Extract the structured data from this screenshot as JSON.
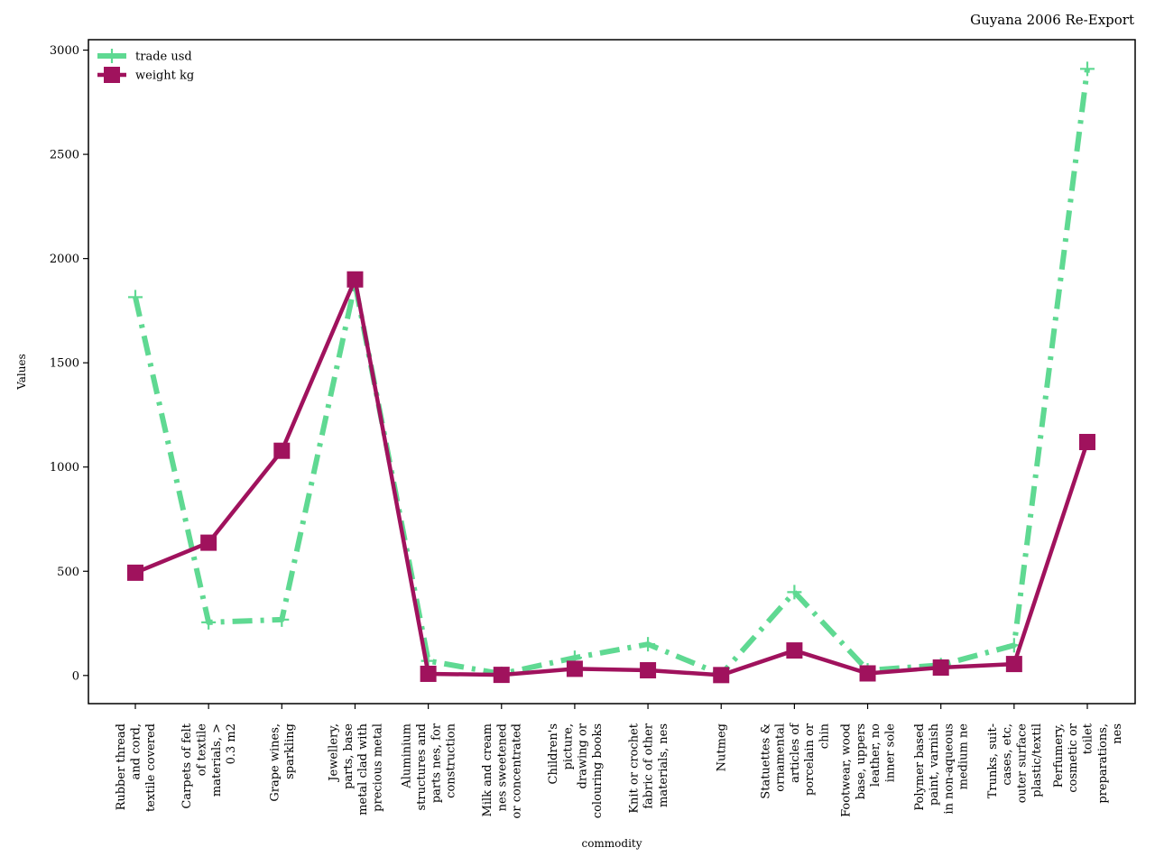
{
  "chart_data": {
    "type": "line",
    "title": "Guyana 2006 Re-Export",
    "xlabel": "commodity",
    "ylabel": "Values",
    "categories": [
      "Rubber thread\nand cord,\ntextile covered",
      "Carpets of felt\nof textile\nmaterials, >\n0.3 m2",
      "Grape wines,\nsparkling",
      "Jewellery,\nparts, base\nmetal clad with\nprecious metal",
      "Aluminium\nstructures and\nparts nes, for\nconstruction",
      "Milk and cream\nnes sweetened\nor concentrated",
      "Children's\npicture,\ndrawing or\ncolouring books",
      "Knit or crochet\nfabric of other\nmaterials, nes",
      "Nutmeg",
      "Statuettes &\nornamental\narticles of\nporcelain or\nchin",
      "Footwear, wood\nbase, uppers\nleather, no\ninner sole",
      "Polymer based\npaint, varnish\nin non-aqueous\nmedium ne",
      "Trunks, suit-\ncases, etc,\nouter surface\nplastic/textil",
      "Perfumery,\ncosmetic or\ntoilet\npreparations,\nnes"
    ],
    "series": [
      {
        "name": "trade usd",
        "color": "#5fd992",
        "values": [
          1815,
          255,
          268,
          1880,
          70,
          8,
          85,
          150,
          5,
          400,
          25,
          50,
          145,
          2910
        ]
      },
      {
        "name": "weight kg",
        "color": "#a0125d",
        "values": [
          493,
          637,
          1078,
          1900,
          8,
          3,
          32,
          25,
          2,
          120,
          10,
          38,
          55,
          1120
        ]
      }
    ],
    "ylim": [
      -135,
      3050
    ],
    "yticks": [
      0,
      500,
      1000,
      1500,
      2000,
      2500,
      3000
    ],
    "grid": false,
    "legend_position": "top-left"
  }
}
